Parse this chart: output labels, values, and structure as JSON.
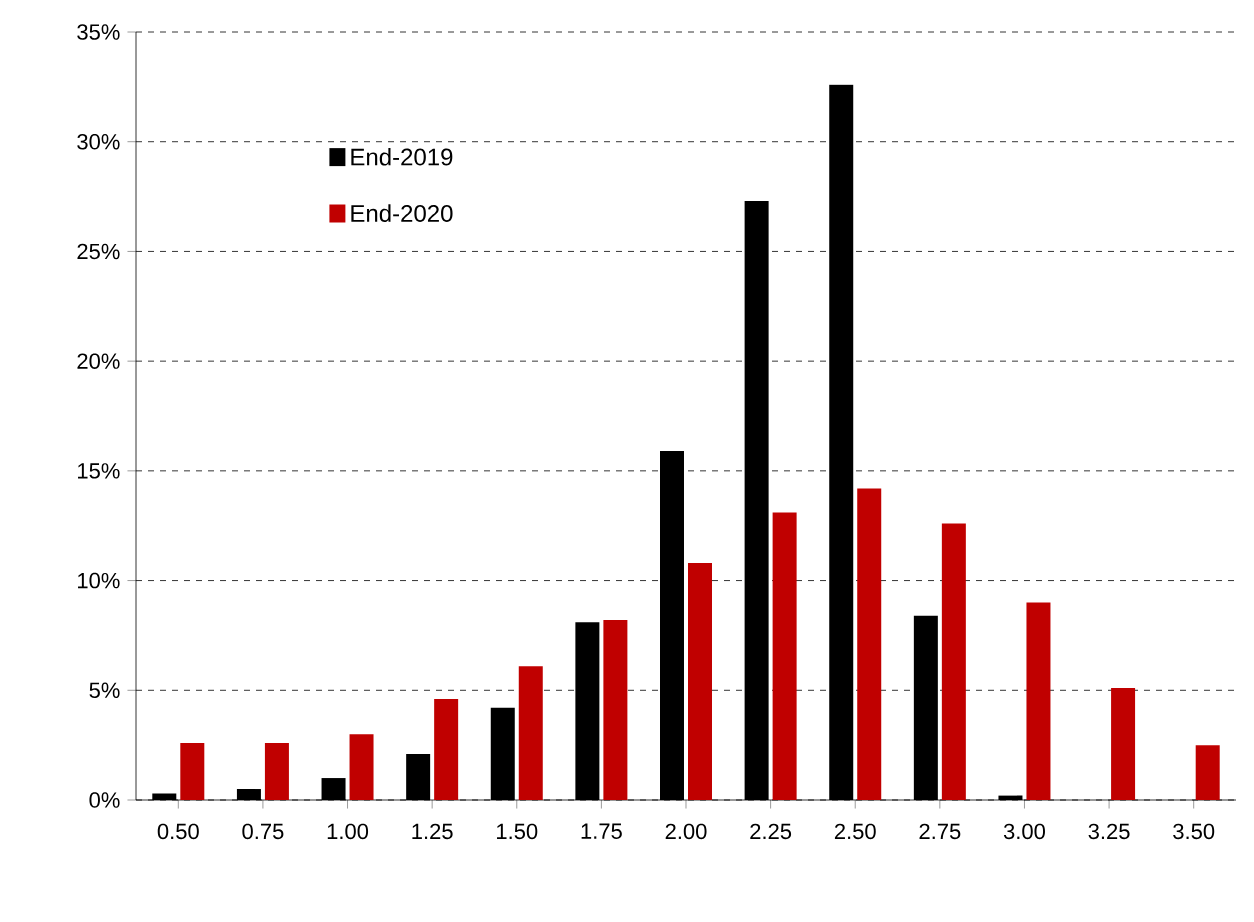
{
  "chart_data": {
    "type": "bar",
    "categories": [
      "0.50",
      "0.75",
      "1.00",
      "1.25",
      "1.50",
      "1.75",
      "2.00",
      "2.25",
      "2.50",
      "2.75",
      "3.00",
      "3.25",
      "3.50"
    ],
    "series": [
      {
        "name": "End-2019",
        "color": "#000000",
        "values": [
          0.3,
          0.5,
          1.0,
          2.1,
          4.2,
          8.1,
          15.9,
          27.3,
          32.6,
          8.4,
          0.2,
          0,
          0
        ]
      },
      {
        "name": "End-2020",
        "color": "#c00000",
        "values": [
          2.6,
          2.6,
          3.0,
          4.6,
          6.1,
          8.2,
          10.8,
          13.1,
          14.2,
          12.6,
          9.0,
          5.1,
          2.5
        ]
      }
    ],
    "ylim": [
      0,
      35
    ],
    "yticks": [
      {
        "value": 0,
        "label": "0%"
      },
      {
        "value": 5,
        "label": "5%"
      },
      {
        "value": 10,
        "label": "10%"
      },
      {
        "value": 15,
        "label": "15%"
      },
      {
        "value": 20,
        "label": "20%"
      },
      {
        "value": 25,
        "label": "25%"
      },
      {
        "value": 30,
        "label": "30%"
      },
      {
        "value": 35,
        "label": "35%"
      }
    ],
    "grid": "y",
    "legend": "top left"
  }
}
